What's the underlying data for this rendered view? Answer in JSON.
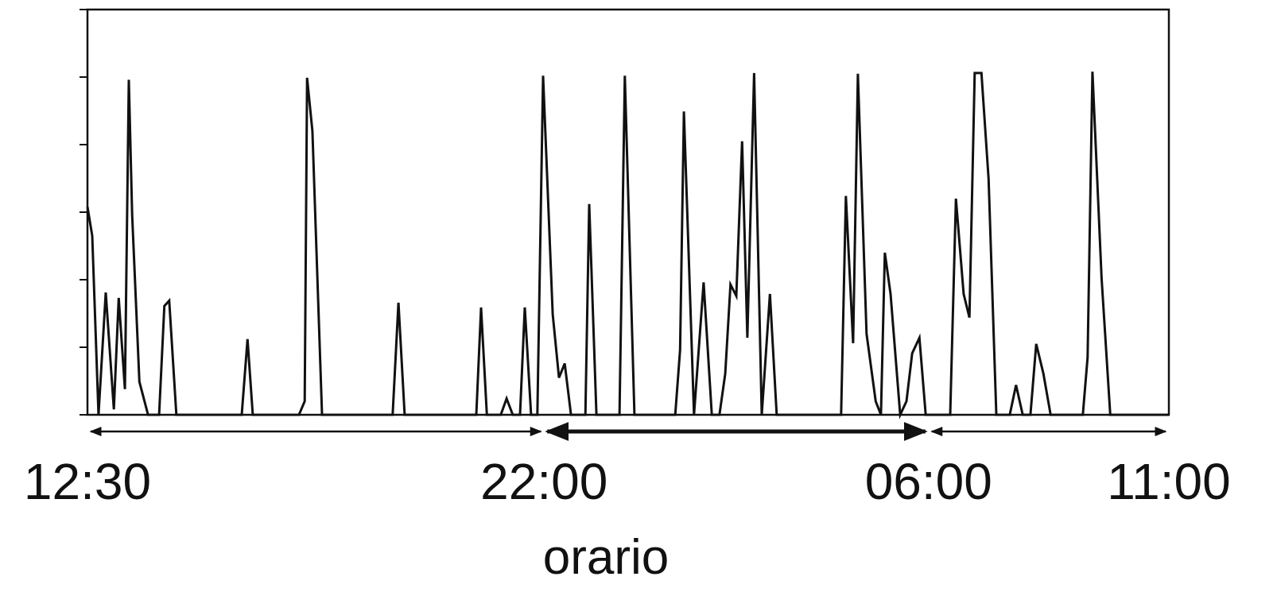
{
  "chart_data": {
    "type": "line",
    "xlabel": "orario",
    "xlim": [
      0,
      22.5
    ],
    "xticks": [
      {
        "value": 0,
        "label": "12:30"
      },
      {
        "value": 9.5,
        "label": "22:00"
      },
      {
        "value": 17.5,
        "label": "06:00"
      },
      {
        "value": 22.5,
        "label": "11:00"
      }
    ],
    "ylim": [
      0,
      6
    ],
    "yticks": [
      0,
      1,
      2,
      3,
      4,
      5,
      6
    ],
    "color": "#111111",
    "x": [
      0,
      0.1,
      0.23,
      0.38,
      0.55,
      0.65,
      0.78,
      0.86,
      0.93,
      1.08,
      1.26,
      1.49,
      1.6,
      1.7,
      1.85,
      3.21,
      3.33,
      3.44,
      4.4,
      4.52,
      4.57,
      4.68,
      4.88,
      6.35,
      6.47,
      6.6,
      8.09,
      8.19,
      8.31,
      8.6,
      8.72,
      8.85,
      9.0,
      9.1,
      9.23,
      9.36,
      9.48,
      9.68,
      9.81,
      9.93,
      10.06,
      10.36,
      10.44,
      10.59,
      11.07,
      11.18,
      11.38,
      12.23,
      12.33,
      12.41,
      12.62,
      12.82,
      12.99,
      13.15,
      13.27,
      13.38,
      13.5,
      13.62,
      13.73,
      13.87,
      14.03,
      14.2,
      14.34,
      15.68,
      15.78,
      15.93,
      16.03,
      16.21,
      16.4,
      16.51,
      16.59,
      16.71,
      16.91,
      17.04,
      17.16,
      17.31,
      17.44,
      17.95,
      18.07,
      18.23,
      18.35,
      18.46,
      18.6,
      18.75,
      18.91,
      19.19,
      19.32,
      19.46,
      19.62,
      19.74,
      19.89,
      20.04,
      20.71,
      20.81,
      20.91,
      21.1,
      21.28,
      22.5
    ],
    "values": [
      3.08,
      2.65,
      0,
      1.81,
      0.08,
      1.73,
      0.38,
      4.96,
      2.96,
      0.49,
      0,
      0,
      1.61,
      1.69,
      0,
      0,
      1.12,
      0,
      0,
      0.2,
      4.99,
      4.2,
      0,
      0,
      1.66,
      0,
      0,
      1.59,
      0,
      0,
      0.24,
      0,
      0,
      1.59,
      0,
      0,
      5.02,
      1.49,
      0.55,
      0.76,
      0,
      0,
      3.12,
      0,
      0,
      5.02,
      0,
      0,
      0.96,
      4.49,
      0,
      1.96,
      0,
      0,
      0.61,
      1.93,
      1.76,
      4.05,
      1.14,
      5.06,
      0,
      1.79,
      0,
      0,
      3.24,
      1.06,
      5.05,
      1.2,
      0.2,
      0,
      2.4,
      1.79,
      0,
      0.2,
      0.91,
      1.14,
      0,
      0,
      3.2,
      1.79,
      1.44,
      5.06,
      5.06,
      3.49,
      0,
      0,
      0.44,
      0,
      0,
      1.05,
      0.61,
      0,
      0,
      0.85,
      5.08,
      2.02,
      0,
      0
    ]
  }
}
